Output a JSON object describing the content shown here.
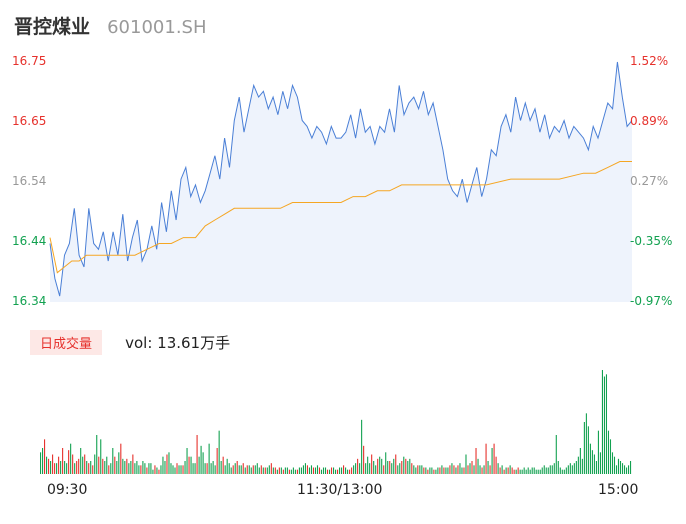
{
  "header": {
    "name": "晋控煤业",
    "code": "601001.SH"
  },
  "colors": {
    "price": "#4a7fd6",
    "avg": "#f5a623",
    "up": "#e6312c",
    "down": "#12a150",
    "neutral": "#999999"
  },
  "volume": {
    "tag": "日成交量",
    "text": "vol: 13.61万手"
  },
  "chart_data": {
    "type": "line",
    "title": "",
    "prev_close": 16.5,
    "ylim": [
      16.34,
      16.75
    ],
    "y_ticks_left": [
      "16.75",
      "16.65",
      "16.54",
      "16.44",
      "16.34"
    ],
    "y_ticks_right": [
      "1.52%",
      "0.89%",
      "0.27%",
      "-0.35%",
      "-0.97%"
    ],
    "x_ticks": [
      "09:30",
      "11:30/13:00",
      "15:00"
    ],
    "x_range": [
      0,
      240
    ],
    "series": [
      {
        "role": "price",
        "values": [
          [
            0,
            16.44
          ],
          [
            2,
            16.38
          ],
          [
            4,
            16.35
          ],
          [
            6,
            16.42
          ],
          [
            8,
            16.44
          ],
          [
            10,
            16.5
          ],
          [
            12,
            16.42
          ],
          [
            14,
            16.4
          ],
          [
            16,
            16.5
          ],
          [
            18,
            16.44
          ],
          [
            20,
            16.43
          ],
          [
            22,
            16.46
          ],
          [
            24,
            16.41
          ],
          [
            26,
            16.46
          ],
          [
            28,
            16.42
          ],
          [
            30,
            16.49
          ],
          [
            32,
            16.41
          ],
          [
            34,
            16.45
          ],
          [
            36,
            16.48
          ],
          [
            38,
            16.41
          ],
          [
            40,
            16.43
          ],
          [
            42,
            16.47
          ],
          [
            44,
            16.43
          ],
          [
            46,
            16.51
          ],
          [
            48,
            16.46
          ],
          [
            50,
            16.53
          ],
          [
            52,
            16.48
          ],
          [
            54,
            16.55
          ],
          [
            56,
            16.57
          ],
          [
            58,
            16.52
          ],
          [
            60,
            16.54
          ],
          [
            62,
            16.51
          ],
          [
            64,
            16.53
          ],
          [
            66,
            16.56
          ],
          [
            68,
            16.59
          ],
          [
            70,
            16.55
          ],
          [
            72,
            16.62
          ],
          [
            74,
            16.57
          ],
          [
            76,
            16.65
          ],
          [
            78,
            16.69
          ],
          [
            80,
            16.63
          ],
          [
            82,
            16.67
          ],
          [
            84,
            16.71
          ],
          [
            86,
            16.69
          ],
          [
            88,
            16.7
          ],
          [
            90,
            16.67
          ],
          [
            92,
            16.69
          ],
          [
            94,
            16.66
          ],
          [
            96,
            16.7
          ],
          [
            98,
            16.67
          ],
          [
            100,
            16.71
          ],
          [
            102,
            16.69
          ],
          [
            104,
            16.65
          ],
          [
            106,
            16.64
          ],
          [
            108,
            16.62
          ],
          [
            110,
            16.64
          ],
          [
            112,
            16.63
          ],
          [
            114,
            16.61
          ],
          [
            116,
            16.64
          ],
          [
            118,
            16.62
          ],
          [
            120,
            16.62
          ],
          [
            122,
            16.63
          ],
          [
            124,
            16.66
          ],
          [
            126,
            16.62
          ],
          [
            128,
            16.67
          ],
          [
            130,
            16.63
          ],
          [
            132,
            16.64
          ],
          [
            134,
            16.61
          ],
          [
            136,
            16.64
          ],
          [
            138,
            16.63
          ],
          [
            140,
            16.67
          ],
          [
            142,
            16.63
          ],
          [
            144,
            16.71
          ],
          [
            146,
            16.66
          ],
          [
            148,
            16.68
          ],
          [
            150,
            16.69
          ],
          [
            152,
            16.67
          ],
          [
            154,
            16.7
          ],
          [
            156,
            16.66
          ],
          [
            158,
            16.68
          ],
          [
            160,
            16.64
          ],
          [
            162,
            16.6
          ],
          [
            164,
            16.55
          ],
          [
            166,
            16.53
          ],
          [
            168,
            16.52
          ],
          [
            170,
            16.55
          ],
          [
            172,
            16.51
          ],
          [
            174,
            16.54
          ],
          [
            176,
            16.57
          ],
          [
            178,
            16.52
          ],
          [
            180,
            16.55
          ],
          [
            182,
            16.6
          ],
          [
            184,
            16.59
          ],
          [
            186,
            16.64
          ],
          [
            188,
            16.66
          ],
          [
            190,
            16.63
          ],
          [
            192,
            16.69
          ],
          [
            194,
            16.65
          ],
          [
            196,
            16.68
          ],
          [
            198,
            16.65
          ],
          [
            200,
            16.67
          ],
          [
            202,
            16.63
          ],
          [
            204,
            16.66
          ],
          [
            206,
            16.62
          ],
          [
            208,
            16.64
          ],
          [
            210,
            16.63
          ],
          [
            212,
            16.65
          ],
          [
            214,
            16.62
          ],
          [
            216,
            16.64
          ],
          [
            218,
            16.63
          ],
          [
            220,
            16.62
          ],
          [
            222,
            16.6
          ],
          [
            224,
            16.64
          ],
          [
            226,
            16.62
          ],
          [
            228,
            16.65
          ],
          [
            230,
            16.68
          ],
          [
            232,
            16.67
          ],
          [
            234,
            16.75
          ],
          [
            236,
            16.69
          ],
          [
            238,
            16.64
          ],
          [
            240,
            16.65
          ]
        ]
      },
      {
        "role": "avg",
        "values": [
          [
            0,
            16.45
          ],
          [
            3,
            16.39
          ],
          [
            6,
            16.4
          ],
          [
            9,
            16.41
          ],
          [
            12,
            16.41
          ],
          [
            15,
            16.42
          ],
          [
            20,
            16.42
          ],
          [
            25,
            16.42
          ],
          [
            30,
            16.42
          ],
          [
            35,
            16.42
          ],
          [
            40,
            16.43
          ],
          [
            45,
            16.44
          ],
          [
            50,
            16.44
          ],
          [
            55,
            16.45
          ],
          [
            60,
            16.45
          ],
          [
            64,
            16.47
          ],
          [
            68,
            16.48
          ],
          [
            72,
            16.49
          ],
          [
            76,
            16.5
          ],
          [
            80,
            16.5
          ],
          [
            85,
            16.5
          ],
          [
            90,
            16.5
          ],
          [
            95,
            16.5
          ],
          [
            100,
            16.51
          ],
          [
            110,
            16.51
          ],
          [
            115,
            16.51
          ],
          [
            120,
            16.51
          ],
          [
            125,
            16.52
          ],
          [
            130,
            16.52
          ],
          [
            135,
            16.53
          ],
          [
            140,
            16.53
          ],
          [
            145,
            16.54
          ],
          [
            150,
            16.54
          ],
          [
            160,
            16.54
          ],
          [
            170,
            16.54
          ],
          [
            180,
            16.54
          ],
          [
            190,
            16.55
          ],
          [
            200,
            16.55
          ],
          [
            210,
            16.55
          ],
          [
            220,
            16.56
          ],
          [
            225,
            16.56
          ],
          [
            230,
            16.57
          ],
          [
            235,
            16.58
          ],
          [
            240,
            16.58
          ]
        ]
      }
    ]
  },
  "volume_data": {
    "colors": [
      "g",
      "g",
      "r",
      "g",
      "r",
      "g",
      "r",
      "r",
      "g",
      "r",
      "g",
      "r",
      "g",
      "g",
      "r",
      "g",
      "r",
      "g",
      "r",
      "r",
      "g",
      "g",
      "r",
      "g",
      "r",
      "g",
      "r",
      "g",
      "g",
      "r",
      "g",
      "r",
      "g",
      "g",
      "r",
      "g",
      "g",
      "r",
      "g",
      "g",
      "r",
      "g",
      "g",
      "r",
      "g",
      "g",
      "r",
      "g",
      "g",
      "g",
      "r",
      "g",
      "g",
      "r",
      "g",
      "g",
      "g",
      "r",
      "g",
      "r",
      "g",
      "g",
      "g",
      "r",
      "g",
      "g",
      "g",
      "g",
      "r",
      "g",
      "g",
      "r",
      "g",
      "g",
      "r",
      "g",
      "g",
      "g",
      "r",
      "g",
      "g",
      "g",
      "g",
      "r",
      "g",
      "g",
      "g",
      "g",
      "r",
      "g",
      "g",
      "r",
      "g",
      "g",
      "g",
      "g",
      "r",
      "g",
      "r",
      "g",
      "g",
      "r",
      "g",
      "r",
      "g",
      "g",
      "r",
      "g",
      "g",
      "g",
      "r",
      "g",
      "r",
      "g",
      "g",
      "r",
      "g",
      "r",
      "g",
      "r",
      "g",
      "r",
      "g",
      "g",
      "r",
      "g",
      "g",
      "g",
      "r",
      "g",
      "g",
      "g",
      "g",
      "r",
      "g",
      "g",
      "r",
      "g",
      "g",
      "r",
      "g",
      "g",
      "g",
      "r",
      "g",
      "r",
      "g",
      "g",
      "r",
      "g",
      "g",
      "r",
      "g",
      "g",
      "r",
      "r",
      "g",
      "g",
      "r",
      "g",
      "g",
      "r",
      "g",
      "g",
      "g",
      "r",
      "g",
      "g",
      "r",
      "g",
      "g",
      "r",
      "g",
      "g",
      "r",
      "g",
      "g",
      "r",
      "g",
      "g",
      "r",
      "g",
      "r",
      "g",
      "g",
      "r",
      "g",
      "g",
      "r",
      "g",
      "g",
      "r",
      "g",
      "r",
      "g",
      "g",
      "r",
      "g",
      "g",
      "r",
      "g",
      "r",
      "g",
      "g",
      "r",
      "g",
      "r",
      "g",
      "r",
      "g",
      "g",
      "r",
      "g",
      "r",
      "g",
      "r",
      "g",
      "r",
      "g",
      "g",
      "r",
      "g",
      "r",
      "g",
      "r",
      "g",
      "r",
      "r",
      "g",
      "r",
      "g",
      "r",
      "g",
      "r",
      "g",
      "r",
      "r",
      "g",
      "r",
      "g"
    ],
    "values": [
      10,
      12,
      16,
      8,
      7,
      6,
      9,
      5,
      5,
      8,
      6,
      12,
      6,
      5,
      11,
      14,
      9,
      5,
      6,
      7,
      12,
      8,
      9,
      6,
      5,
      6,
      4,
      9,
      18,
      8,
      16,
      7,
      6,
      8,
      4,
      5,
      12,
      8,
      6,
      10,
      14,
      7,
      6,
      7,
      5,
      6,
      9,
      5,
      6,
      4,
      4,
      6,
      5,
      3,
      5,
      5,
      2,
      4,
      3,
      2,
      4,
      8,
      6,
      9,
      10,
      5,
      4,
      3,
      5,
      4,
      4,
      4,
      6,
      12,
      8,
      8,
      5,
      5,
      18,
      8,
      13,
      10,
      5,
      5,
      14,
      5,
      6,
      4,
      12,
      20,
      6,
      8,
      4,
      7,
      5,
      3,
      4,
      5,
      6,
      4,
      4,
      5,
      3,
      4,
      4,
      3,
      4,
      4,
      5,
      3,
      4,
      3,
      3,
      3,
      4,
      5,
      3,
      3,
      2,
      3,
      3,
      2,
      3,
      3,
      2,
      2,
      3,
      2,
      2,
      3,
      3,
      4,
      5,
      4,
      3,
      4,
      3,
      3,
      4,
      3,
      2,
      3,
      3,
      2,
      2,
      3,
      3,
      2,
      2,
      3,
      3,
      4,
      3,
      2,
      2,
      3,
      4,
      5,
      7,
      5,
      25,
      13,
      5,
      8,
      5,
      9,
      6,
      4,
      7,
      8,
      7,
      4,
      10,
      6,
      6,
      5,
      7,
      9,
      4,
      5,
      6,
      8,
      7,
      6,
      7,
      5,
      4,
      3,
      4,
      4,
      4,
      3,
      3,
      2,
      3,
      3,
      2,
      2,
      3,
      3,
      4,
      3,
      3,
      3,
      4,
      5,
      4,
      3,
      4,
      5,
      3,
      3,
      9,
      4,
      5,
      6,
      4,
      12,
      7,
      4,
      3,
      4,
      14,
      6,
      4,
      12,
      14,
      8,
      5,
      3,
      4,
      2,
      3,
      3,
      4,
      3,
      2,
      2,
      3,
      2,
      2,
      3,
      2,
      3,
      2,
      3,
      3,
      2,
      2,
      2,
      3,
      4,
      3,
      3,
      4,
      4,
      5,
      18,
      6,
      3,
      2,
      2,
      3,
      4,
      5,
      4,
      5,
      6,
      8,
      12,
      7,
      24,
      28,
      22,
      14,
      11,
      9,
      6,
      20,
      10,
      48,
      45,
      46,
      20,
      16,
      10,
      8,
      4,
      7,
      6,
      5,
      4,
      3,
      4,
      6
    ]
  }
}
